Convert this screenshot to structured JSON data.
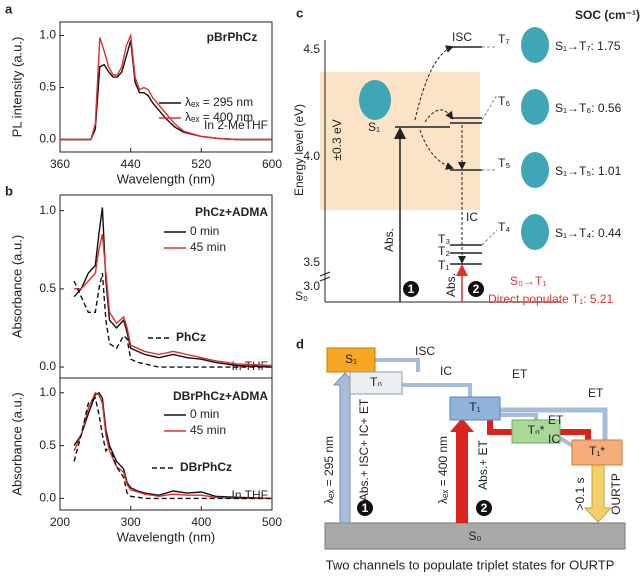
{
  "chart_data": [
    {
      "type": "line",
      "panel": "a",
      "title": "pBrPhCz",
      "x_label": "Wavelength (nm)",
      "y_label": "PL intensity (a.u.)",
      "annotation": "In 2-MeTHF",
      "x": [
        360,
        395,
        400,
        405,
        410,
        415,
        420,
        425,
        430,
        435,
        440,
        445,
        450,
        455,
        460,
        465,
        470,
        480,
        490,
        500,
        520,
        540,
        560,
        580,
        600
      ],
      "series": [
        {
          "name": "λₑₓ = 295 nm",
          "color": "#111111",
          "dash": false,
          "values": [
            0,
            0,
            0.1,
            0.7,
            0.72,
            0.65,
            0.6,
            0.6,
            0.65,
            0.8,
            0.95,
            0.55,
            0.45,
            0.45,
            0.42,
            0.35,
            0.3,
            0.2,
            0.12,
            0.07,
            0.03,
            0.01,
            0,
            0,
            0
          ]
        },
        {
          "name": "λₑₓ = 400 nm",
          "color": "#e0302a",
          "dash": false,
          "values": [
            0,
            0,
            0.15,
            0.98,
            0.85,
            0.7,
            0.62,
            0.62,
            0.7,
            0.9,
            1.0,
            0.6,
            0.48,
            0.5,
            0.48,
            0.4,
            0.35,
            0.25,
            0.15,
            0.08,
            0.03,
            0.01,
            0,
            0,
            0
          ]
        }
      ],
      "xlim": [
        360,
        600
      ],
      "xticks": [
        360,
        440,
        520,
        600
      ],
      "ylim": [
        -0.12,
        1.13
      ],
      "yticks": [
        {
          "value": 0,
          "label": "0.0"
        },
        {
          "value": 0.5,
          "label": "0.5"
        },
        {
          "value": 1,
          "label": "1.0"
        }
      ]
    },
    {
      "type": "line",
      "panel": "b",
      "title": "PhCz+ADMA",
      "y_label": "Absorbance (a.u.)",
      "annotation": "In THF",
      "x": [
        220,
        230,
        240,
        250,
        255,
        260,
        265,
        270,
        280,
        290,
        295,
        300,
        310,
        320,
        330,
        340,
        350,
        360,
        380,
        400,
        420,
        450,
        500
      ],
      "series": [
        {
          "name": "0 min",
          "color": "#111111",
          "dash": false,
          "values": [
            0.45,
            0.5,
            0.6,
            0.65,
            0.85,
            1.02,
            0.55,
            0.3,
            0.25,
            0.3,
            0.22,
            0.12,
            0.1,
            0.08,
            0.07,
            0.06,
            0.07,
            0.08,
            0.06,
            0.05,
            0.03,
            0.01,
            0
          ]
        },
        {
          "name": "45 min",
          "color": "#e0302a",
          "dash": false,
          "values": [
            0.5,
            0.5,
            0.55,
            0.6,
            0.75,
            0.85,
            0.6,
            0.35,
            0.28,
            0.32,
            0.25,
            0.14,
            0.12,
            0.1,
            0.09,
            0.08,
            0.09,
            0.1,
            0.08,
            0.06,
            0.04,
            0.02,
            0.01
          ]
        },
        {
          "name": "PhCz",
          "color": "#111111",
          "dash": true,
          "values": [
            0.55,
            0.45,
            0.35,
            0.35,
            0.5,
            0.6,
            0.3,
            0.15,
            0.12,
            0.2,
            0.18,
            0.05,
            0.03,
            0.02,
            0.01,
            0,
            0,
            0,
            0,
            0,
            0,
            0,
            0
          ]
        }
      ],
      "xlim": [
        200,
        500
      ],
      "ylim": [
        -0.07,
        1.1
      ],
      "yticks": [
        {
          "value": 0,
          "label": "0.0"
        },
        {
          "value": 0.5,
          "label": "0.5"
        },
        {
          "value": 1,
          "label": "1.0"
        }
      ]
    },
    {
      "type": "line",
      "title": "DBrPhCz+ADMA",
      "x_label": "Wavelength (nm)",
      "y_label": "Absorbance (a.u.)",
      "annotation": "In THF",
      "x": [
        220,
        230,
        240,
        250,
        255,
        260,
        265,
        270,
        280,
        290,
        295,
        300,
        310,
        320,
        330,
        340,
        350,
        360,
        380,
        400,
        420,
        450,
        500
      ],
      "series": [
        {
          "name": "0 min",
          "color": "#111111",
          "dash": false,
          "values": [
            0.5,
            0.6,
            0.8,
            0.98,
            1.0,
            0.95,
            0.65,
            0.5,
            0.35,
            0.28,
            0.15,
            0.1,
            0.07,
            0.05,
            0.04,
            0.03,
            0.05,
            0.07,
            0.05,
            0.06,
            0.02,
            0.01,
            0
          ]
        },
        {
          "name": "45 min",
          "color": "#e0302a",
          "dash": false,
          "values": [
            0.45,
            0.6,
            0.85,
            1.0,
            0.98,
            0.9,
            0.6,
            0.45,
            0.3,
            0.25,
            0.13,
            0.08,
            0.06,
            0.04,
            0.03,
            0.02,
            0.03,
            0.04,
            0.03,
            0.03,
            0.01,
            0,
            0
          ]
        },
        {
          "name": "DBrPhCz",
          "color": "#111111",
          "dash": true,
          "values": [
            0.35,
            0.6,
            0.9,
            0.95,
            0.8,
            0.6,
            0.45,
            0.5,
            0.3,
            0.2,
            0.05,
            0.02,
            0.01,
            0,
            0,
            0,
            0,
            0,
            0,
            0,
            0,
            0,
            0
          ]
        }
      ],
      "xlim": [
        200,
        500
      ],
      "xticks": [
        200,
        300,
        400,
        500
      ],
      "ylim": [
        -0.11,
        1.14
      ],
      "yticks": [
        {
          "value": 0,
          "label": "0.0"
        },
        {
          "value": 0.5,
          "label": "0.5"
        },
        {
          "value": 1,
          "label": "1.0"
        }
      ]
    }
  ],
  "panel_c": {
    "panel": "c",
    "header": "SOC (cm⁻¹)",
    "y_label": "Energy level (eV)",
    "ticks": [
      "4.5",
      "4.0",
      "3.5",
      "3.0"
    ],
    "levels": {
      "S0": "S₀",
      "S1": "S₁",
      "T1": "T₁",
      "T2": "T₂",
      "T3": "T₃",
      "T4": "T₄",
      "T5": "T₅",
      "T6": "T₆",
      "T7": "T₇"
    },
    "soc": [
      "S₁→T₇: 1.75",
      "S₁→T₆: 0.56",
      "S₁→T₅: 1.01",
      "S₁→T₄: 0.44"
    ],
    "isc": "ISC",
    "ic": "IC",
    "abs1": "Abs.",
    "abs2": "Abs.",
    "window": "±0.3 eV",
    "n1": "1",
    "n2": "2",
    "s0t1": "S₀→T₁",
    "direct": "Direct populate T₁: 5.21"
  },
  "panel_d": {
    "panel": "d",
    "s1": "S₁",
    "tn": "Tₙ",
    "t1": "T₁",
    "tn_star": "Tₙ*",
    "t1_star": "T₁*",
    "s0": "S₀",
    "isc": "ISC",
    "ic1": "IC",
    "ic2": "IC",
    "et1": "ET",
    "et2": "ET",
    "et3": "ET",
    "abs1": "Abs.+ ISC+ IC+ ET",
    "lam1": "λₑₓ = 295 nm",
    "abs2": "Abs.+ ET",
    "lam2": "λₑₓ = 400 nm",
    "n1": "1",
    "n2": "2",
    "time": ">0.1 s",
    "ourtp": "OURTP",
    "caption": "Two channels to populate triplet states for OURTP"
  }
}
